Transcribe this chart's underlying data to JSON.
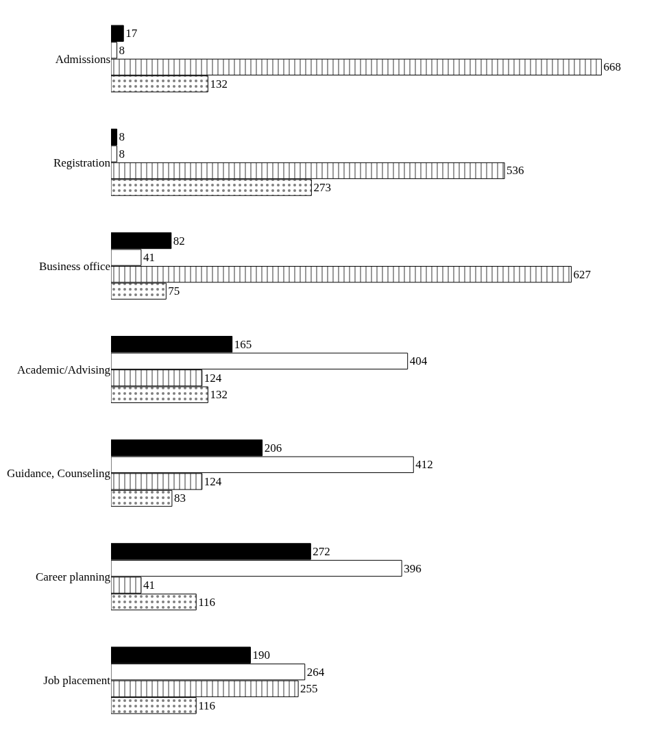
{
  "chart_data": {
    "type": "bar",
    "orientation": "horizontal",
    "data_labels": true,
    "tick_labels": "y",
    "categories": [
      "Admissions",
      "Registration",
      "Business office",
      "Academic/Advising",
      "Guidance, Counseling",
      "Career planning",
      "Job placement"
    ],
    "series": [
      {
        "color": "#000000",
        "values": [
          17,
          8,
          82,
          165,
          206,
          272,
          190
        ]
      },
      {
        "color": "#ffffff",
        "values": [
          8,
          8,
          41,
          404,
          412,
          396,
          264
        ]
      },
      {
        "color": "#000000",
        "values": [
          668,
          536,
          627,
          124,
          124,
          41,
          255
        ]
      },
      {
        "color": "#000000",
        "values": [
          132,
          273,
          75,
          132,
          83,
          116,
          116
        ]
      }
    ]
  }
}
